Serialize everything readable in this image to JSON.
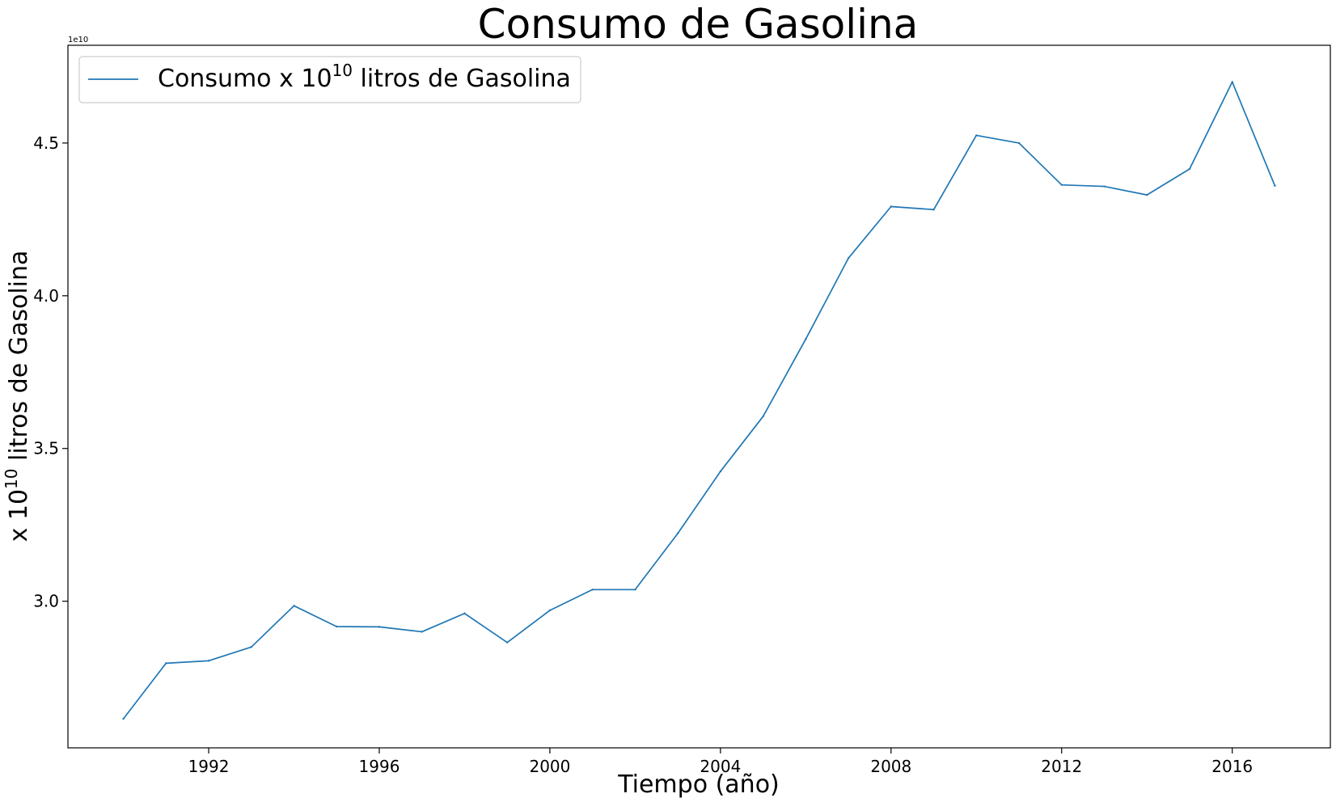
{
  "chart_data": {
    "type": "line",
    "title": "Consumo de Gasolina",
    "xlabel": "Tiempo (año)",
    "ylabel": {
      "prefix": "x 10",
      "sup": "10",
      "suffix": " litros de Gasolina"
    },
    "y_offset_label": "1e10",
    "xlim": [
      1988.7,
      2018.3
    ],
    "ylim": [
      2.52,
      4.82
    ],
    "x_ticks": [
      1992,
      1996,
      2000,
      2004,
      2008,
      2012,
      2016
    ],
    "y_ticks": [
      3.0,
      3.5,
      4.0,
      4.5
    ],
    "y_tick_labels": [
      "3.0",
      "3.5",
      "4.0",
      "4.5"
    ],
    "grid": false,
    "legend_position": "upper-left",
    "series": [
      {
        "name": {
          "prefix": "Consumo x 10",
          "sup": "10",
          "suffix": " litros de Gasolina"
        },
        "color": "#1f77b4",
        "x": [
          1990,
          1991,
          1992,
          1993,
          1994,
          1995,
          1996,
          1997,
          1998,
          1999,
          2000,
          2001,
          2002,
          2003,
          2004,
          2005,
          2006,
          2007,
          2008,
          2009,
          2010,
          2011,
          2012,
          2013,
          2014,
          2015,
          2016,
          2017
        ],
        "y": [
          2.615,
          2.797,
          2.805,
          2.85,
          2.985,
          2.917,
          2.916,
          2.9,
          2.96,
          2.865,
          2.97,
          3.038,
          3.038,
          3.222,
          3.425,
          3.605,
          3.858,
          4.123,
          4.292,
          4.282,
          4.525,
          4.5,
          4.363,
          4.358,
          4.33,
          4.415,
          4.7,
          4.36
        ]
      }
    ]
  }
}
